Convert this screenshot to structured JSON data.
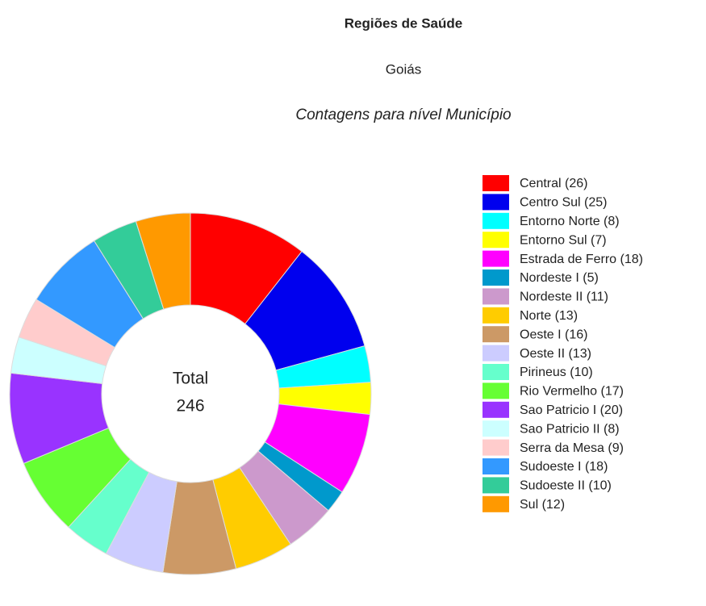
{
  "chart_data": {
    "type": "donut",
    "title": "Regiões de Saúde",
    "subtitle": "Goiás",
    "caption": "Contagens para nível Município",
    "categories": [
      "Central (26)",
      "Centro Sul (25)",
      "Entorno Norte (8)",
      "Entorno Sul (7)",
      "Estrada de Ferro (18)",
      "Nordeste I (5)",
      "Nordeste II (11)",
      "Norte (13)",
      "Oeste I (16)",
      "Oeste II (13)",
      "Pirineus (10)",
      "Rio Vermelho (17)",
      "Sao Patricio I (20)",
      "Sao Patricio II (8)",
      "Serra da Mesa (9)",
      "Sudoeste I (18)",
      "Sudoeste II (10)",
      "Sul (12)"
    ],
    "values": [
      26,
      25,
      8,
      7,
      18,
      5,
      11,
      13,
      16,
      13,
      10,
      17,
      20,
      8,
      9,
      18,
      10,
      12
    ],
    "colors": [
      "#ff0000",
      "#0000ee",
      "#00ffff",
      "#ffff00",
      "#ff00ff",
      "#0099cc",
      "#cc99cc",
      "#ffcc00",
      "#cc9966",
      "#ccccff",
      "#66ffcc",
      "#66ff33",
      "#9933ff",
      "#ccffff",
      "#ffcccc",
      "#3399ff",
      "#33cc99",
      "#ff9900"
    ],
    "center_label": "Total",
    "total": 246,
    "legend": "right"
  }
}
